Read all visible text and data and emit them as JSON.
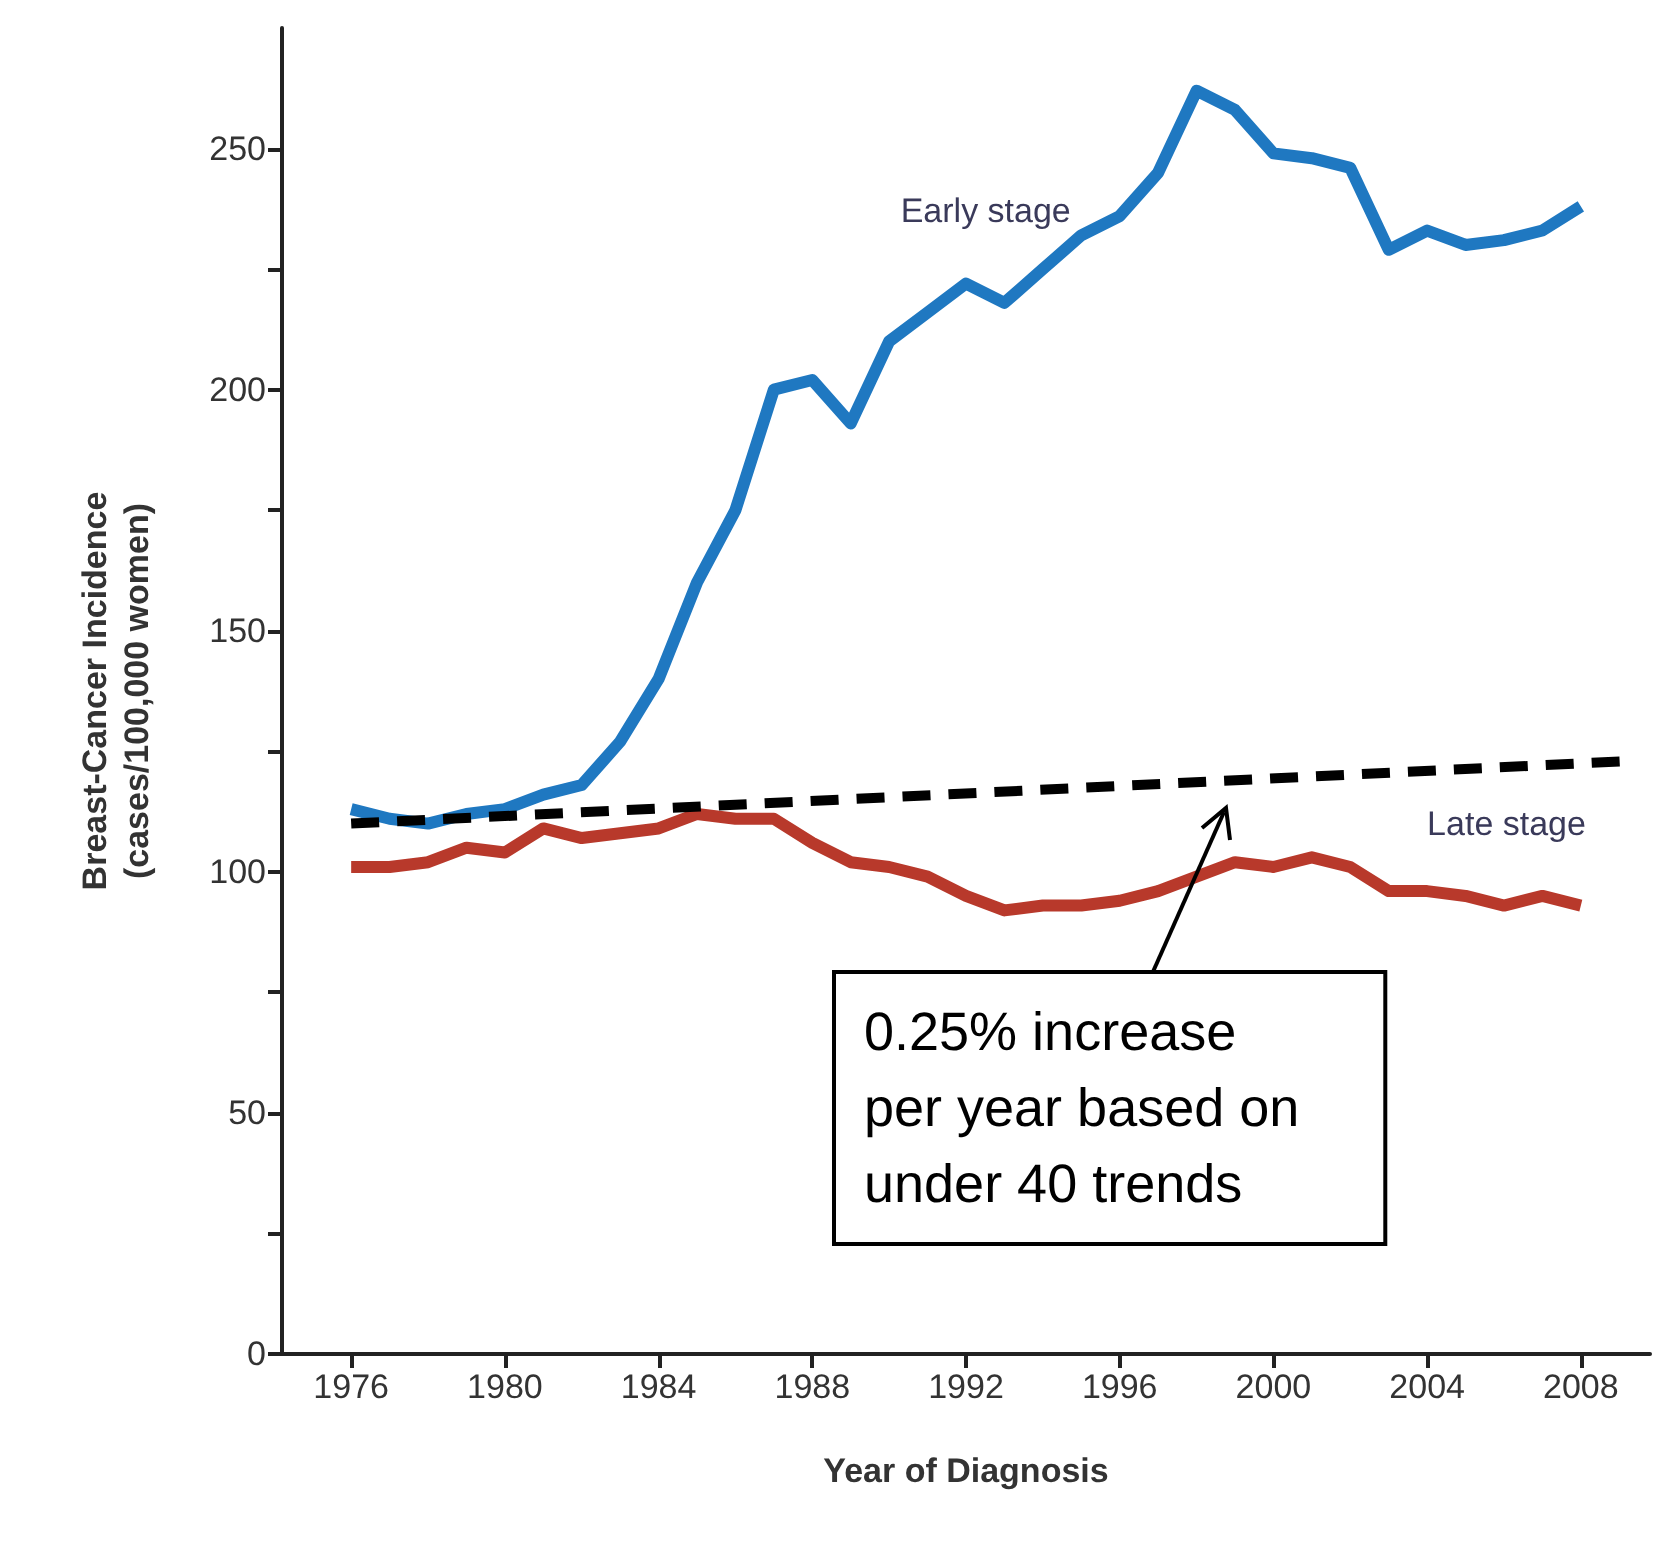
{
  "chart_data": {
    "type": "line",
    "xlabel": "Year of Diagnosis",
    "ylabel": "Breast-Cancer Incidence\n(cases/100,000 women)",
    "x": [
      1976,
      1977,
      1978,
      1979,
      1980,
      1981,
      1982,
      1983,
      1984,
      1985,
      1986,
      1987,
      1988,
      1989,
      1990,
      1991,
      1992,
      1993,
      1994,
      1995,
      1996,
      1997,
      1998,
      1999,
      2000,
      2001,
      2002,
      2003,
      2004,
      2005,
      2006,
      2007,
      2008
    ],
    "series": [
      {
        "name": "Early stage",
        "color": "#1f78c1",
        "values": [
          113,
          111,
          110,
          112,
          113,
          116,
          118,
          127,
          140,
          160,
          175,
          200,
          202,
          193,
          210,
          216,
          222,
          218,
          225,
          232,
          236,
          245,
          262,
          258,
          249,
          248,
          246,
          229,
          233,
          230,
          231,
          233,
          238
        ]
      },
      {
        "name": "Late stage",
        "color": "#b8392b",
        "values": [
          101,
          101,
          102,
          105,
          104,
          109,
          107,
          108,
          109,
          112,
          111,
          111,
          106,
          102,
          101,
          99,
          95,
          92,
          93,
          93,
          94,
          96,
          99,
          102,
          101,
          103,
          101,
          96,
          96,
          95,
          93,
          95,
          93
        ]
      },
      {
        "type": "line",
        "color": "#000000",
        "line_style": "dashed",
        "x": [
          1976,
          2009.3
        ],
        "values": [
          110,
          123
        ]
      }
    ],
    "xlim": [
      1974.2,
      2009.8
    ],
    "xticks": [
      1976,
      1980,
      1984,
      1988,
      1992,
      1996,
      2000,
      2004,
      2008
    ],
    "ylim": [
      0,
      275
    ],
    "yticks": [
      0,
      {
        "value": 25,
        "label": null
      },
      50,
      {
        "value": 75,
        "label": null
      },
      100,
      {
        "value": 125,
        "label": null
      },
      150,
      {
        "value": 175,
        "label": null
      },
      200,
      {
        "value": 225,
        "label": null
      },
      250
    ],
    "annotations": [
      "0.25% increase\nper year based on\nunder 40 trends"
    ],
    "grid": false,
    "legend": false,
    "marker": "none",
    "line_style": "solid"
  }
}
